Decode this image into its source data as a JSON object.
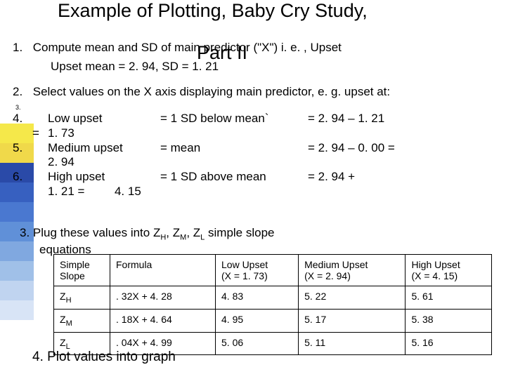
{
  "sidebar_colors": [
    "#f5e84a",
    "#f0d94a",
    "#2a4aa8",
    "#3760c0",
    "#4a78d0",
    "#6090d8",
    "#80a8e0",
    "#a0c0e8",
    "#c0d4f0",
    "#d8e4f6"
  ],
  "title_line1": "Example of Plotting, Baby Cry Study,",
  "title_line2": "Part II",
  "step1_num": "1.",
  "step1_text": "Compute mean and SD of main predictor (\"X\") i. e. , Upset",
  "step1_sub": "Upset mean = 2. 94, SD = 1. 21",
  "step2_num": "2.",
  "step2_text": "Select values on the X axis displaying main predictor, e. g. upset at:",
  "tiny3": "3.",
  "calc": {
    "r4_num": "4.",
    "r4_lbl": "Low upset",
    "r4_mid": "= 1 SD below  mean`",
    "r4_rhs": "= 2. 94 – 1. 21",
    "r4b_eq": "=",
    "r4b_val": "1. 73",
    "r5_num": "5.",
    "r5_lbl": "Medium upset",
    "r5_mid": "= mean",
    "r5_rhs": "= 2. 94 – 0. 00 =",
    "r5b_val": "2. 94",
    "r6_num": "6.",
    "r6_lbl": "High upset",
    "r6_mid": "= 1 SD above mean",
    "r6_rhs": "= 2. 94 +",
    "r6b_val": "1. 21 =         4. 15"
  },
  "step3_pre": "3.   Plug these values into Z",
  "step3_h": "H",
  "step3_sep1": ", Z",
  "step3_m": "M",
  "step3_sep2": ", Z",
  "step3_l": "L",
  "step3_post": " simple slope",
  "step3_line2": "equations",
  "table": {
    "headers": [
      "Simple Slope",
      "Formula",
      "Low Upset\n(X = 1. 73)",
      "Medium Upset\n(X = 2. 94)",
      "High Upset\n(X = 4. 15)"
    ],
    "rows": [
      {
        "label_pre": "Z",
        "label_sub": "H",
        "formula": ". 32X + 4. 28",
        "low": "4. 83",
        "med": "5. 22",
        "high": "5. 61"
      },
      {
        "label_pre": "Z",
        "label_sub": "M",
        "formula": ". 18X + 4. 64",
        "low": "4. 95",
        "med": "5. 17",
        "high": "5. 38"
      },
      {
        "label_pre": "Z",
        "label_sub": "L",
        "formula": ". 04X + 4. 99",
        "low": "5. 06",
        "med": "5. 11",
        "high": "5. 16"
      }
    ]
  },
  "step4": "4.  Plot values into graph"
}
